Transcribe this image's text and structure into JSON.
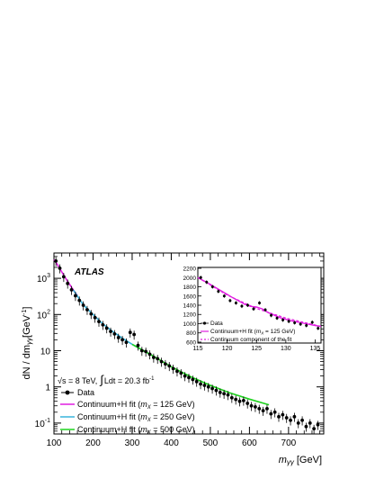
{
  "chart_data": [
    {
      "type": "scatter",
      "brand": "ATLAS",
      "xlabel": "mγγ [GeV]",
      "xlabel_main": "m",
      "xlabel_sub": "γγ",
      "xlabel_unit": "[GeV]",
      "ylabel": "dN / dmγγ [GeV⁻¹]",
      "ylabel_text": "dN / dm",
      "ylabel_sub": "γγ",
      "ylabel_unit": "[GeV",
      "ylabel_exp": "-1",
      "ylabel_close": "]",
      "xlim": [
        100,
        790
      ],
      "ylim": [
        0.05,
        5000
      ],
      "yscale": "log",
      "x_ticks": [
        100,
        200,
        300,
        400,
        500,
        600,
        700
      ],
      "y_ticks": [
        {
          "value": 0.1,
          "base": "10",
          "exp": "-1"
        },
        {
          "value": 1,
          "base": "1",
          "exp": ""
        },
        {
          "value": 10,
          "base": "10",
          "exp": ""
        },
        {
          "value": 100,
          "base": "10",
          "exp": "2"
        },
        {
          "value": 1000,
          "base": "10",
          "exp": "3"
        }
      ],
      "energy_note": {
        "sqrt": "√",
        "s": "s = 8 TeV,",
        "integral": "∫",
        "L": "Ldt = 20.3 fb",
        "exp": "-1"
      },
      "legend_placement": "bottom-left",
      "legend": [
        {
          "label": "Data",
          "style": "points",
          "color": "#000000"
        },
        {
          "label": "Continuum+H fit (",
          "mx": "m",
          "sub": "X",
          "mass": " = 125 GeV)",
          "color": "#e01ee0"
        },
        {
          "label": "Continuum+H fit (",
          "mx": "m",
          "sub": "X",
          "mass": " = 250 GeV)",
          "color": "#38b4dc"
        },
        {
          "label": "Continuum+H fit (",
          "mx": "m",
          "sub": "X",
          "mass": " = 500 GeV)",
          "color": "#1ed21e"
        }
      ],
      "series": [
        {
          "name": "Data",
          "color": "#000000",
          "x": [
            105,
            115,
            125,
            135,
            145,
            155,
            165,
            175,
            185,
            195,
            205,
            215,
            225,
            235,
            245,
            255,
            265,
            275,
            285,
            295,
            305,
            315,
            325,
            335,
            345,
            355,
            365,
            375,
            385,
            395,
            405,
            415,
            425,
            435,
            445,
            455,
            465,
            475,
            485,
            495,
            505,
            515,
            525,
            535,
            545,
            555,
            565,
            575,
            585,
            595,
            605,
            615,
            625,
            635,
            645,
            655,
            665,
            675,
            685,
            695,
            705,
            715,
            725,
            735,
            745,
            755,
            765,
            775
          ],
          "values": [
            3000,
            1900,
            1100,
            720,
            480,
            330,
            245,
            180,
            135,
            104,
            82,
            64,
            52,
            42,
            34,
            29,
            23,
            20,
            17,
            32,
            28,
            14,
            10,
            9.5,
            8.0,
            6.5,
            6.0,
            5.0,
            4.3,
            3.8,
            3.2,
            2.7,
            2.4,
            2.0,
            1.8,
            1.6,
            1.4,
            1.2,
            1.1,
            1.0,
            0.9,
            0.8,
            0.7,
            0.65,
            0.6,
            0.5,
            0.45,
            0.4,
            0.42,
            0.35,
            0.3,
            0.28,
            0.25,
            0.22,
            0.25,
            0.18,
            0.2,
            0.15,
            0.17,
            0.14,
            0.12,
            0.15,
            0.1,
            0.12,
            0.08,
            0.1,
            0.07,
            0.09
          ]
        },
        {
          "name": "Continuum+H fit (mX = 125 GeV)",
          "color": "#e01ee0",
          "x": [
            100,
            110,
            120,
            130,
            140,
            150,
            160
          ],
          "values": [
            3300,
            2300,
            1500,
            1000,
            680,
            470,
            330
          ]
        },
        {
          "name": "Continuum+H fit (mX = 250 GeV)",
          "color": "#38b4dc",
          "x": [
            150,
            175,
            200,
            225,
            250,
            275,
            300,
            325,
            350
          ],
          "values": [
            470,
            185,
            100,
            55,
            34,
            22,
            15,
            10.5,
            7.5
          ]
        },
        {
          "name": "Continuum+H fit (mX = 500 GeV)",
          "color": "#1ed21e",
          "x": [
            300,
            350,
            400,
            450,
            500,
            550,
            600,
            650
          ],
          "values": [
            15,
            7.5,
            3.6,
            1.9,
            1.1,
            0.68,
            0.46,
            0.32
          ]
        }
      ]
    },
    {
      "type": "scatter",
      "xlim": [
        115,
        136
      ],
      "ylim": [
        580,
        2220
      ],
      "x_ticks": [
        115,
        120,
        125,
        130,
        135
      ],
      "y_ticks": [
        600,
        800,
        1000,
        1200,
        1400,
        1600,
        1800,
        2000,
        2200
      ],
      "legend": [
        {
          "label": "Data",
          "style": "points",
          "color": "#000000"
        },
        {
          "label": "Continuum+H fit (",
          "mx": "m",
          "sub": "X",
          "mass": " = 125 GeV)",
          "color": "#e01ee0"
        },
        {
          "label": "Continuum component of the fit",
          "style": "dashed",
          "color": "#e01ee0"
        }
      ],
      "series": [
        {
          "name": "Data",
          "color": "#000000",
          "x": [
            115.5,
            116.5,
            117.5,
            118.5,
            119.5,
            120.5,
            121.5,
            122.5,
            123.5,
            124.5,
            125.5,
            126.5,
            127.5,
            128.5,
            129.5,
            130.5,
            131.5,
            132.5,
            133.5,
            134.5,
            135.5
          ],
          "values": [
            2000,
            1900,
            1800,
            1700,
            1600,
            1500,
            1450,
            1380,
            1400,
            1320,
            1450,
            1300,
            1180,
            1120,
            1080,
            1050,
            1020,
            990,
            960,
            1030,
            900
          ]
        },
        {
          "name": "Continuum+H fit (mX = 125 GeV)",
          "color": "#e01ee0",
          "x": [
            115,
            117,
            119,
            121,
            123,
            124,
            125,
            126,
            127,
            129,
            131,
            133,
            135,
            136
          ],
          "values": [
            2000,
            1860,
            1710,
            1560,
            1420,
            1375,
            1360,
            1320,
            1240,
            1130,
            1060,
            1010,
            960,
            940
          ]
        },
        {
          "name": "Continuum component of the fit",
          "color": "#e01ee0",
          "style": "dashed",
          "x": [
            115,
            120,
            125,
            130,
            135,
            136
          ],
          "values": [
            2000,
            1620,
            1330,
            1120,
            970,
            940
          ]
        }
      ]
    }
  ]
}
